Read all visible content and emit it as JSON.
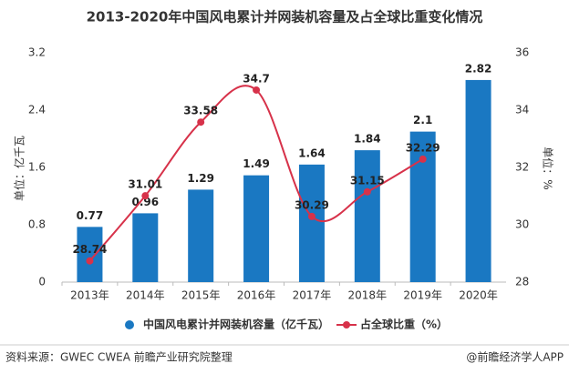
{
  "chart_data": {
    "type": "combo",
    "title": "2013-2020年中国风电累计并网装机容量及占全球比重变化情况",
    "categories": [
      "2013年",
      "2014年",
      "2015年",
      "2016年",
      "2017年",
      "2018年",
      "2019年",
      "2020年"
    ],
    "series": [
      {
        "name": "中国风电累计并网装机容量（亿千瓦）",
        "type": "bar",
        "color": "#1a78c2",
        "values": [
          0.77,
          0.96,
          1.29,
          1.49,
          1.64,
          1.84,
          2.1,
          2.82
        ]
      },
      {
        "name": "占全球比重（%）",
        "type": "line",
        "axis": "y2",
        "color": "#d7324a",
        "values": [
          28.74,
          31.01,
          33.58,
          34.7,
          30.29,
          31.15,
          32.29,
          null
        ]
      }
    ],
    "ylabel": "单位：亿千瓦",
    "y2label": "单位：%",
    "ylim": [
      0,
      3.2
    ],
    "yticks": [
      0,
      0.8,
      1.6,
      2.4,
      3.2
    ],
    "y2lim": [
      28,
      36
    ],
    "y2ticks": [
      28,
      30,
      32,
      34,
      36
    ],
    "grid": false,
    "legend": "bottom",
    "source": "资料来源：GWEC CWEA 前瞻产业研究院整理",
    "credit": "@前瞻经济学人APP"
  }
}
